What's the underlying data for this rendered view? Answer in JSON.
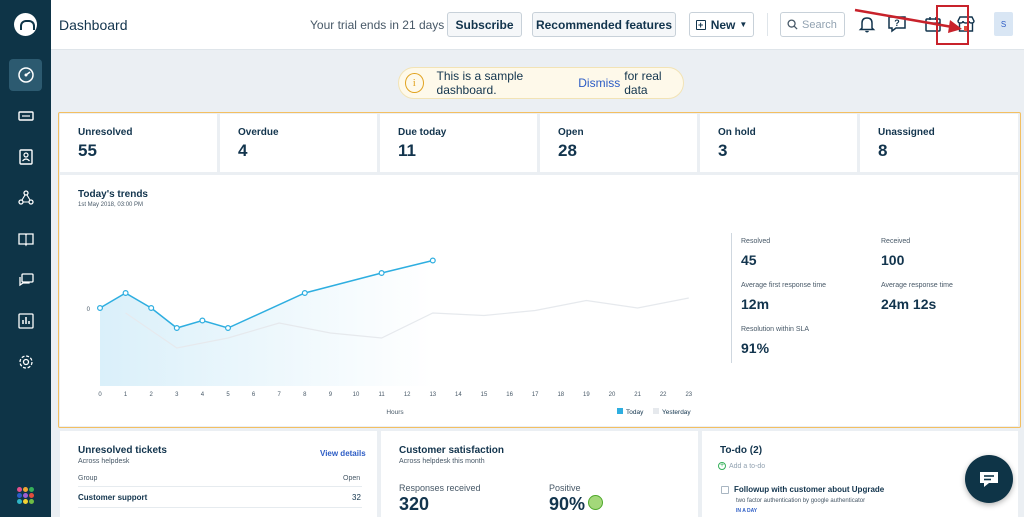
{
  "sidebar": {
    "logo_icon": "helpdesk-logo-icon",
    "items": [
      {
        "name": "dashboard",
        "icon": "dashboard-gauge-icon"
      },
      {
        "name": "tickets",
        "icon": "ticket-icon"
      },
      {
        "name": "contacts",
        "icon": "contact-card-icon"
      },
      {
        "name": "social",
        "icon": "social-network-icon"
      },
      {
        "name": "solutions",
        "icon": "book-icon"
      },
      {
        "name": "forums",
        "icon": "discussion-icon"
      },
      {
        "name": "reports",
        "icon": "bar-chart-icon"
      },
      {
        "name": "admin",
        "icon": "gear-icon"
      }
    ],
    "apps_icon": "app-switcher-icon",
    "apps_colors": [
      "#e2508d",
      "#f2a533",
      "#35b05a",
      "#2c5cc5",
      "#9c5ed1",
      "#e14d3c",
      "#2fb6c7",
      "#f2d233",
      "#6fbd44"
    ]
  },
  "header": {
    "title": "Dashboard",
    "trial_text": "Your trial ends in 21 days",
    "subscribe_label": "Subscribe",
    "recommended_label": "Recommended features",
    "new_label": "New",
    "search_placeholder": "Search",
    "avatar_initial": "S"
  },
  "banner": {
    "text": "This is a sample dashboard.",
    "dismiss": "Dismiss",
    "suffix": "for real data"
  },
  "stats": [
    {
      "label": "Unresolved",
      "value": "55"
    },
    {
      "label": "Overdue",
      "value": "4"
    },
    {
      "label": "Due today",
      "value": "11"
    },
    {
      "label": "Open",
      "value": "28"
    },
    {
      "label": "On hold",
      "value": "3"
    },
    {
      "label": "Unassigned",
      "value": "8"
    }
  ],
  "trends": {
    "title": "Today's trends",
    "date": "1st May 2018, 03:00 PM",
    "metrics": [
      {
        "label": "Resolved",
        "value": "45"
      },
      {
        "label": "Received",
        "value": "100"
      },
      {
        "label": "Average first response time",
        "value": "12m"
      },
      {
        "label": "Average response time",
        "value": "24m 12s"
      },
      {
        "label": "Resolution within SLA",
        "value": "91%"
      }
    ]
  },
  "chart_data": {
    "type": "line",
    "x": [
      0,
      1,
      2,
      3,
      4,
      5,
      6,
      7,
      8,
      9,
      10,
      11,
      12,
      13,
      14,
      15,
      16,
      17,
      18,
      19,
      20,
      21,
      22,
      23
    ],
    "xlabel": "Hours",
    "ylabel": "",
    "y_tick_labels": [
      "0"
    ],
    "legend": [
      "Today",
      "Yesterday"
    ],
    "legend_placement": "bottom-right",
    "series": [
      {
        "name": "Today",
        "color": "#2eaee0",
        "x": [
          0,
          1,
          2,
          3,
          4,
          5,
          8,
          11,
          13
        ],
        "values": [
          0,
          0.3,
          0,
          -0.4,
          -0.25,
          -0.4,
          0.3,
          0.7,
          0.95
        ]
      },
      {
        "name": "Yesterday",
        "color": "#e6e9ed",
        "x": [
          1,
          3,
          5,
          7,
          9,
          11,
          13,
          15,
          17,
          19,
          21,
          23
        ],
        "values": [
          -0.1,
          -0.8,
          -0.6,
          -0.3,
          -0.5,
          -0.6,
          -0.1,
          -0.15,
          -0.05,
          0.15,
          0,
          0.2
        ]
      }
    ],
    "grid": false
  },
  "unresolved_card": {
    "title": "Unresolved tickets",
    "subtitle": "Across helpdesk",
    "view_details": "View details",
    "columns": [
      "Group",
      "Open"
    ],
    "rows": [
      {
        "group": "Customer support",
        "open": "32"
      }
    ]
  },
  "satisfaction_card": {
    "title": "Customer satisfaction",
    "subtitle": "Across helpdesk this month",
    "responses_label": "Responses received",
    "responses_value": "320",
    "positive_label": "Positive",
    "positive_value": "90%"
  },
  "todo_card": {
    "title": "To-do (2)",
    "add_label": "Add a to-do",
    "items": [
      {
        "title": "Followup with customer about Upgrade",
        "desc": "two factor authentication by google authenticator",
        "due": "IN A DAY"
      }
    ]
  }
}
